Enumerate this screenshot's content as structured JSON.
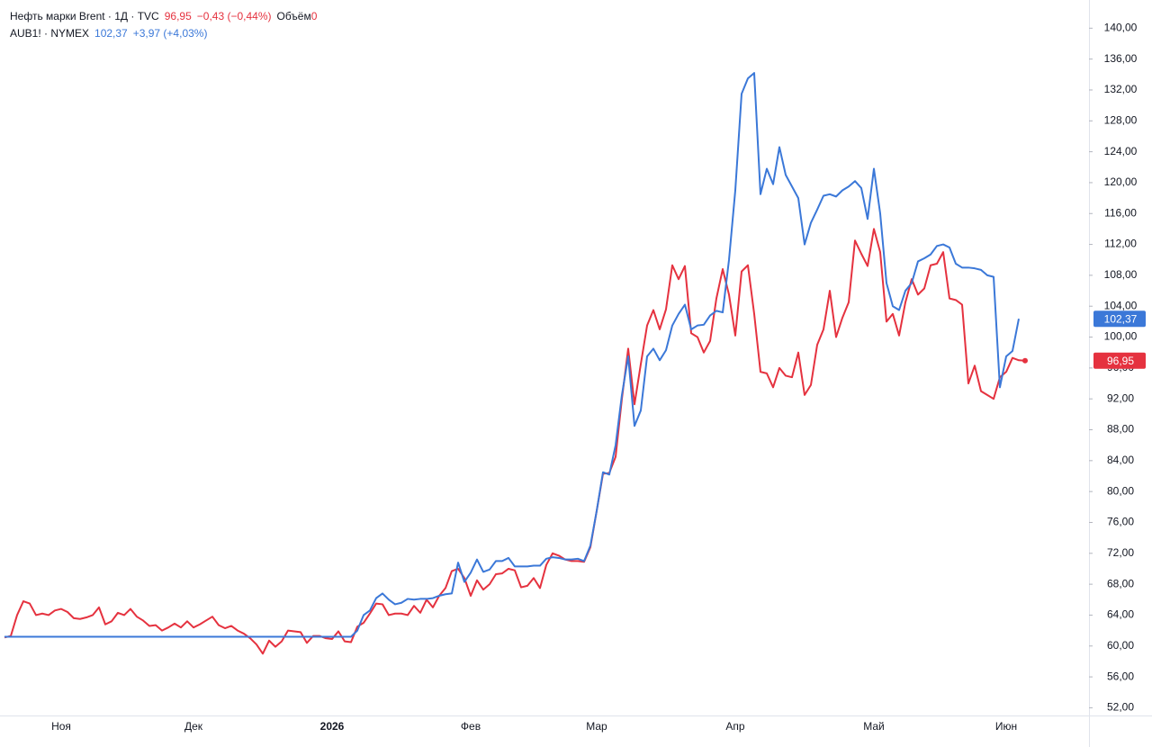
{
  "chart_data": {
    "type": "line",
    "categories": [
      null,
      null,
      null,
      null,
      null,
      null,
      null,
      null,
      null,
      "Ноя",
      null,
      null,
      null,
      null,
      null,
      null,
      null,
      null,
      null,
      null,
      null,
      null,
      null,
      null,
      null,
      null,
      null,
      null,
      null,
      null,
      "Дек",
      null,
      null,
      null,
      null,
      null,
      null,
      null,
      null,
      null,
      null,
      null,
      null,
      null,
      null,
      null,
      null,
      null,
      null,
      null,
      null,
      null,
      "2026",
      null,
      null,
      null,
      null,
      null,
      null,
      null,
      null,
      null,
      null,
      null,
      null,
      null,
      null,
      null,
      null,
      null,
      null,
      null,
      null,
      null,
      "Фев",
      null,
      null,
      null,
      null,
      null,
      null,
      null,
      null,
      null,
      null,
      null,
      null,
      null,
      null,
      null,
      null,
      null,
      null,
      null,
      "Мар",
      null,
      null,
      null,
      null,
      null,
      null,
      null,
      null,
      null,
      null,
      null,
      null,
      null,
      null,
      null,
      null,
      null,
      null,
      null,
      null,
      null,
      "Апр",
      null,
      null,
      null,
      null,
      null,
      null,
      null,
      null,
      null,
      null,
      null,
      null,
      null,
      null,
      null,
      null,
      null,
      null,
      null,
      null,
      null,
      "Май",
      null,
      null,
      null,
      null,
      null,
      null,
      null,
      null,
      null,
      null,
      null,
      null,
      null,
      null,
      null,
      null,
      null,
      null,
      null,
      null,
      "Июн",
      null,
      null,
      null
    ],
    "series": [
      {
        "name": "Нефть марки Brent · 1Д · TVC",
        "color": "#e5323f",
        "last_value_label": "96,95",
        "change": "−0,43 (−0,44%)",
        "volume_label": "Объём",
        "volume_value": 0,
        "values": [
          61.1,
          61.3,
          64,
          65.8,
          65.5,
          64,
          64.2,
          64,
          64.6,
          64.8,
          64.4,
          63.6,
          63.5,
          63.7,
          64,
          65,
          62.8,
          63.2,
          64.3,
          64,
          64.8,
          63.8,
          63.3,
          62.6,
          62.7,
          62,
          62.4,
          62.9,
          62.4,
          63.2,
          62.4,
          62.8,
          63.3,
          63.8,
          62.7,
          62.3,
          62.6,
          62,
          61.6,
          61,
          60.2,
          59,
          60.7,
          59.9,
          60.6,
          62,
          61.9,
          61.8,
          60.4,
          61.3,
          61.3,
          61,
          60.9,
          61.9,
          60.6,
          60.5,
          62.5,
          63,
          64.2,
          65.5,
          65.4,
          64,
          64.2,
          64.2,
          64,
          65.2,
          64.3,
          66,
          65,
          66.5,
          67.5,
          69.7,
          70,
          68.8,
          66.5,
          68.5,
          67.3,
          68,
          69.3,
          69.4,
          70,
          69.8,
          67.6,
          67.8,
          68.8,
          67.5,
          70.5,
          72,
          71.7,
          71.2,
          71,
          71,
          70.9,
          72.8,
          77.5,
          82.3,
          82.4,
          84.5,
          92,
          98.5,
          91.3,
          96.5,
          101.5,
          103.5,
          101,
          103.6,
          109.3,
          107.5,
          109.2,
          100.5,
          100,
          98,
          99.5,
          105,
          108.8,
          105.5,
          100.2,
          108.5,
          109.3,
          103,
          95.5,
          95.3,
          93.5,
          96,
          95,
          94.8,
          98,
          92.5,
          93.8,
          99,
          101,
          106,
          100,
          102.5,
          104.5,
          112.5,
          110.8,
          109.2,
          114,
          111,
          102,
          103,
          100.2,
          104.5,
          107.5,
          105.5,
          106.3,
          109.3,
          109.5,
          111,
          105,
          104.8,
          104.2,
          94,
          96.3,
          93,
          92.5,
          92,
          94.8,
          95.5,
          97.3,
          97,
          96.95
        ]
      },
      {
        "name": "AUB1! · NYMEX",
        "color": "#3b78d8",
        "last_value_label": "102,37",
        "change": "+3,97 (+4,03%)",
        "values": [
          61.2,
          61.2,
          61.2,
          61.2,
          61.2,
          61.2,
          61.2,
          61.2,
          61.2,
          61.2,
          61.2,
          61.2,
          61.2,
          61.2,
          61.2,
          61.2,
          61.2,
          61.2,
          61.2,
          61.2,
          61.2,
          61.2,
          61.2,
          61.2,
          61.2,
          61.2,
          61.2,
          61.2,
          61.2,
          61.2,
          61.2,
          61.2,
          61.2,
          61.2,
          61.2,
          61.2,
          61.2,
          61.2,
          61.2,
          61.2,
          61.2,
          61.2,
          61.2,
          61.2,
          61.2,
          61.2,
          61.2,
          61.2,
          61.2,
          61.2,
          61.2,
          61.2,
          61.2,
          61.2,
          61.2,
          61.2,
          62.0,
          64,
          64.6,
          66.2,
          66.8,
          66,
          65.4,
          65.6,
          66.1,
          66,
          66.1,
          66.1,
          66.2,
          66.5,
          66.7,
          66.8,
          70.8,
          68.3,
          69.5,
          71.2,
          69.6,
          69.9,
          71,
          71,
          71.4,
          70.3,
          70.3,
          70.3,
          70.4,
          70.4,
          71.3,
          71.5,
          71.4,
          71.2,
          71.2,
          71.3,
          71,
          73,
          77.5,
          82.5,
          82.2,
          86,
          92.5,
          97.5,
          88.5,
          90.5,
          97.5,
          98.5,
          97,
          98.3,
          101.5,
          103,
          104.2,
          101,
          101.5,
          101.6,
          102.8,
          103.4,
          103.2,
          110,
          119,
          131.5,
          133.5,
          134.2,
          118.5,
          121.8,
          119.8,
          124.6,
          121,
          119.5,
          118,
          112,
          114.8,
          116.5,
          118.3,
          118.5,
          118.2,
          119,
          119.5,
          120.2,
          119.3,
          115.3,
          121.8,
          116,
          107,
          104,
          103.5,
          106,
          107,
          109.8,
          110.2,
          110.7,
          111.8,
          112,
          111.6,
          109.5,
          109,
          109,
          108.9,
          108.7,
          108,
          107.8,
          93.5,
          97.5,
          98.2,
          102.37,
          null
        ]
      }
    ],
    "ylim": [
      51,
      143.3
    ],
    "yticks": [
      {
        "value": 52,
        "label": "52,00"
      },
      {
        "value": 56,
        "label": "56,00"
      },
      {
        "value": 60,
        "label": "60,00"
      },
      {
        "value": 64,
        "label": "64,00"
      },
      {
        "value": 68,
        "label": "68,00"
      },
      {
        "value": 72,
        "label": "72,00"
      },
      {
        "value": 76,
        "label": "76,00"
      },
      {
        "value": 80,
        "label": "80,00"
      },
      {
        "value": 84,
        "label": "84,00"
      },
      {
        "value": 88,
        "label": "88,00"
      },
      {
        "value": 92,
        "label": "92,00"
      },
      {
        "value": 96,
        "label": "96,00"
      },
      {
        "value": 100,
        "label": "100,00"
      },
      {
        "value": 104,
        "label": "104,00"
      },
      {
        "value": 108,
        "label": "108,00"
      },
      {
        "value": 112,
        "label": "112,00"
      },
      {
        "value": 116,
        "label": "116,00"
      },
      {
        "value": 120,
        "label": "120,00"
      },
      {
        "value": 124,
        "label": "124,00"
      },
      {
        "value": 128,
        "label": "128,00"
      },
      {
        "value": 132,
        "label": "132,00"
      },
      {
        "value": 136,
        "label": "136,00"
      },
      {
        "value": 140,
        "label": "140,00"
      }
    ],
    "grid": false
  }
}
